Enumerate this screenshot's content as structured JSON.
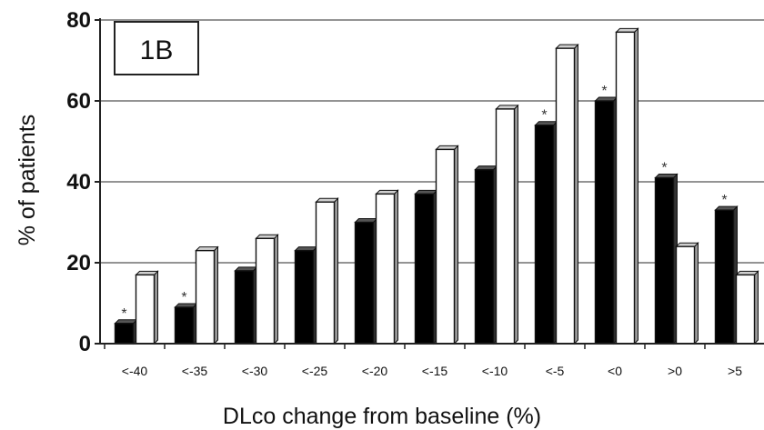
{
  "chart_data": {
    "type": "bar",
    "panel_label": "1B",
    "xlabel": "DLco change from baseline (%)",
    "ylabel": "% of patients",
    "ylim": [
      0,
      80
    ],
    "yticks": [
      "0",
      "20",
      "40",
      "60",
      "80"
    ],
    "grid": true,
    "categories": [
      "<-40",
      "<-35",
      "<-30",
      "<-25",
      "<-20",
      "<-15",
      "<-10",
      "<-5",
      "<0",
      ">0",
      ">5"
    ],
    "series": [
      {
        "color": "#000000",
        "values": [
          5,
          9,
          18,
          23,
          30,
          37,
          43,
          54,
          60,
          41,
          33
        ]
      },
      {
        "color": "#ffffff",
        "values": [
          17,
          23,
          26,
          35,
          37,
          48,
          58,
          73,
          77,
          24,
          17
        ]
      }
    ],
    "annotations": {
      "significance_marker": "*",
      "marked_categories": [
        0,
        1,
        7,
        8,
        9,
        10
      ]
    }
  }
}
